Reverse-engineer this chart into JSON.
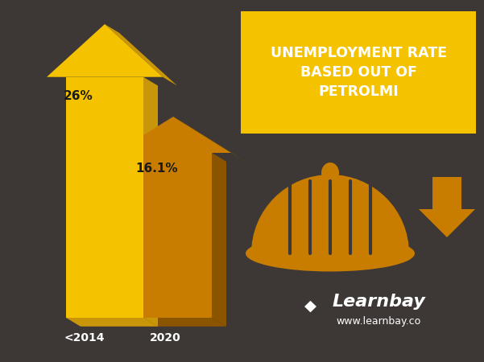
{
  "background_color": "#3d3835",
  "title_text": "UNEMPLOYMENT RATE\nBASED OUT OF\nPETROLMI",
  "title_bg_color": "#F5C200",
  "title_text_color": "#ffffff",
  "bar1_color": "#F5C200",
  "bar1_side_color": "#C9960A",
  "bar2_color": "#C87D00",
  "bar2_side_color": "#8B5500",
  "bar1_label": "<2014",
  "bar2_label": "2020",
  "bar1_value": "26%",
  "bar2_value": "16.1%",
  "label_color": "#1a1a1a",
  "hat_color": "#C87D00",
  "hat_dark_color": "#8B5500",
  "arrow_color": "#C87D00",
  "text_white": "#ffffff",
  "learnbay_text": "Learnbay",
  "website_text": "www.learnbay.co"
}
